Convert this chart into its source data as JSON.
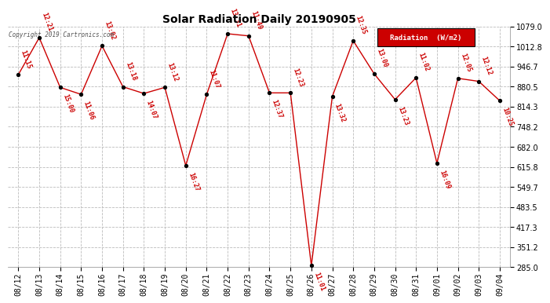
{
  "title": "Solar Radiation Daily 20190905",
  "copyright": "Copyright 2019 Cartronics.com",
  "legend_label": "Radiation  (W/m2)",
  "ylim": [
    285.0,
    1079.0
  ],
  "yticks": [
    285.0,
    351.2,
    417.3,
    483.5,
    549.7,
    615.8,
    682.0,
    748.2,
    814.3,
    880.5,
    946.7,
    1012.8,
    1079.0
  ],
  "dates": [
    "08/12",
    "08/13",
    "08/14",
    "08/15",
    "08/16",
    "08/17",
    "08/18",
    "08/19",
    "08/20",
    "08/21",
    "08/22",
    "08/23",
    "08/24",
    "08/25",
    "08/26",
    "08/27",
    "08/28",
    "08/29",
    "08/30",
    "08/31",
    "09/01",
    "09/02",
    "09/03",
    "09/04"
  ],
  "values": [
    920,
    1042,
    878,
    855,
    1015,
    880,
    858,
    878,
    620,
    855,
    1055,
    1048,
    860,
    860,
    290,
    848,
    1032,
    923,
    838,
    910,
    628,
    908,
    898,
    834
  ],
  "time_labels": [
    "11:15",
    "12:21",
    "15:00",
    "11:06",
    "13:02",
    "13:18",
    "14:07",
    "13:12",
    "16:27",
    "11:07",
    "13:31",
    "11:49",
    "12:37",
    "12:23",
    "11:01",
    "13:32",
    "12:35",
    "13:00",
    "13:23",
    "11:02",
    "16:09",
    "12:05",
    "12:12",
    "10:25"
  ],
  "label_rotate": -70,
  "line_color": "#cc0000",
  "marker_color": "#000000",
  "label_color": "#cc0000",
  "bg_color": "#ffffff",
  "grid_color": "#bbbbbb",
  "legend_bg": "#cc0000",
  "legend_text_color": "#ffffff"
}
